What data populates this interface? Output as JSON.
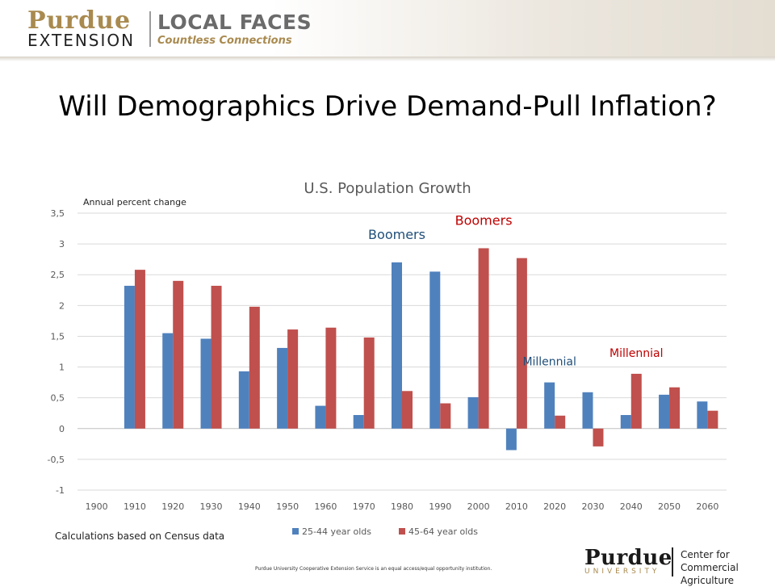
{
  "header": {
    "logo_purdue": "Purdue",
    "logo_extension": "EXTENSION",
    "logo_local_faces": "LOCAL FACES",
    "logo_countless": "Countless Connections"
  },
  "slide": {
    "title": "Will Demographics Drive Demand-Pull Inflation?"
  },
  "colors": {
    "series_25_44": "#4f81bd",
    "series_45_64": "#c0504d",
    "purdue_gold": "#a98a4f"
  },
  "chart_data": {
    "type": "bar",
    "title": "U.S. Population Growth",
    "ylabel": "Annual percent change",
    "xlabel": "",
    "ylim": [
      -1,
      3.5
    ],
    "yticks": [
      -1,
      -0.5,
      0,
      0.5,
      1,
      1.5,
      2,
      2.5,
      3,
      3.5
    ],
    "ytick_labels": [
      "-1",
      "-0,5",
      "0",
      "0,5",
      "1",
      "1,5",
      "2",
      "2,5",
      "3",
      "3,5"
    ],
    "categories": [
      "1900",
      "1910",
      "1920",
      "1930",
      "1940",
      "1950",
      "1960",
      "1970",
      "1980",
      "1990",
      "2000",
      "2010",
      "2020",
      "2030",
      "2040",
      "2050",
      "2060"
    ],
    "series": [
      {
        "name": "25-44 year olds",
        "color": "#4f81bd",
        "values": [
          null,
          2.32,
          1.55,
          1.46,
          0.93,
          1.31,
          0.37,
          0.22,
          2.7,
          2.55,
          0.51,
          -0.35,
          0.75,
          0.59,
          0.22,
          0.55,
          0.44
        ]
      },
      {
        "name": "45-64 year olds",
        "color": "#c0504d",
        "values": [
          null,
          2.58,
          2.4,
          2.32,
          1.98,
          1.61,
          1.64,
          1.48,
          0.61,
          0.41,
          2.93,
          2.77,
          0.21,
          -0.29,
          0.89,
          0.67,
          0.29
        ]
      }
    ],
    "grid": true,
    "legend": "bottom",
    "annotations": [
      {
        "text": "Boomers",
        "series": 0,
        "category": "1980",
        "color": "#1f4e79"
      },
      {
        "text": "Boomers",
        "series": 1,
        "category": "2000",
        "color": "#c00000"
      },
      {
        "text": "Millennial",
        "series": 0,
        "category": "2020",
        "color": "#1f4e79"
      },
      {
        "text": "Millennial",
        "series": 1,
        "category": "2040",
        "color": "#c00000"
      }
    ]
  },
  "footer": {
    "note": "Calculations based on Census data",
    "disclaimer": "Purdue University Cooperative Extension Service is an equal access/equal opportunity institution.",
    "purdue_logo": "Purdue",
    "purdue_university": "UNIVERSITY",
    "center_line1": "Center for",
    "center_line2": "Commercial Agriculture"
  }
}
